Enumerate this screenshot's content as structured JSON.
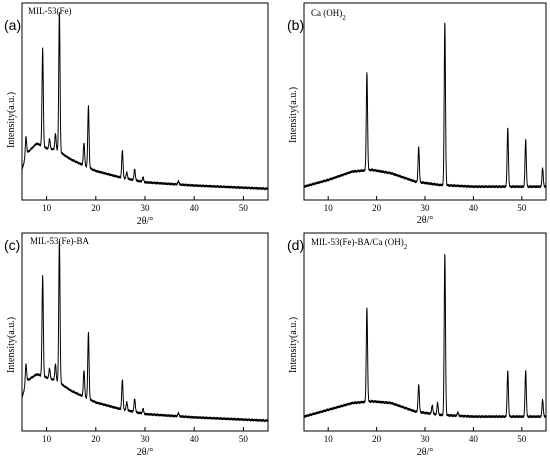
{
  "chart_data": [
    {
      "type": "line",
      "panel_label": "(a)",
      "title": "MIL-53(Fe)",
      "xlabel": "2θ/°",
      "ylabel": "Intensity(a.u.)",
      "xlim": [
        5,
        55
      ],
      "xticks": [
        10,
        20,
        30,
        40,
        50
      ],
      "y_scale": "arbitrary units, normalized 0-1",
      "grid": false,
      "series": [
        {
          "baseline": [
            [
              5,
              0.14
            ],
            [
              6,
              0.24
            ],
            [
              8,
              0.3
            ],
            [
              10,
              0.27
            ],
            [
              12,
              0.26
            ],
            [
              15,
              0.2
            ],
            [
              20,
              0.13
            ],
            [
              25,
              0.09
            ],
            [
              30,
              0.06
            ],
            [
              40,
              0.04
            ],
            [
              55,
              0.02
            ]
          ],
          "peaks": [
            [
              5.8,
              0.12
            ],
            [
              9.2,
              0.6
            ],
            [
              10.6,
              0.06
            ],
            [
              11.8,
              0.1
            ],
            [
              12.6,
              0.86
            ],
            [
              17.6,
              0.14
            ],
            [
              18.5,
              0.38
            ],
            [
              25.4,
              0.17
            ],
            [
              26.3,
              0.04
            ],
            [
              27.9,
              0.07
            ],
            [
              29.6,
              0.03
            ],
            [
              36.8,
              0.02
            ]
          ]
        }
      ]
    },
    {
      "type": "line",
      "panel_label": "(b)",
      "title": "Ca (OH)",
      "title_sub": "2",
      "xlabel": "2θ/°",
      "ylabel": "Intensity(a.u.)",
      "xlim": [
        5,
        55
      ],
      "xticks": [
        10,
        20,
        30,
        40,
        50
      ],
      "y_scale": "arbitrary units, normalized 0-1",
      "grid": false,
      "series": [
        {
          "baseline": [
            [
              5,
              0.02
            ],
            [
              10,
              0.06
            ],
            [
              15,
              0.11
            ],
            [
              19,
              0.12
            ],
            [
              23,
              0.1
            ],
            [
              28,
              0.05
            ],
            [
              33,
              0.03
            ],
            [
              40,
              0.02
            ],
            [
              55,
              0.02
            ]
          ],
          "peaks": [
            [
              18.0,
              0.58
            ],
            [
              28.7,
              0.21
            ],
            [
              34.1,
              0.97
            ],
            [
              47.1,
              0.35
            ],
            [
              50.8,
              0.28
            ],
            [
              54.3,
              0.11
            ]
          ]
        }
      ]
    },
    {
      "type": "line",
      "panel_label": "(c)",
      "title": "MIL-53(Fe)-BA",
      "xlabel": "2θ/°",
      "ylabel": "Intensity(a.u.)",
      "xlim": [
        5,
        55
      ],
      "xticks": [
        10,
        20,
        30,
        40,
        50
      ],
      "y_scale": "arbitrary units, normalized 0-1",
      "grid": false,
      "series": [
        {
          "baseline": [
            [
              5,
              0.16
            ],
            [
              6,
              0.26
            ],
            [
              8,
              0.3
            ],
            [
              10,
              0.28
            ],
            [
              12,
              0.26
            ],
            [
              15,
              0.2
            ],
            [
              20,
              0.13
            ],
            [
              25,
              0.09
            ],
            [
              30,
              0.06
            ],
            [
              40,
              0.04
            ],
            [
              55,
              0.02
            ]
          ],
          "peaks": [
            [
              5.8,
              0.12
            ],
            [
              9.2,
              0.6
            ],
            [
              10.6,
              0.06
            ],
            [
              11.8,
              0.1
            ],
            [
              12.6,
              0.85
            ],
            [
              17.6,
              0.16
            ],
            [
              18.5,
              0.4
            ],
            [
              25.4,
              0.18
            ],
            [
              26.3,
              0.05
            ],
            [
              27.9,
              0.08
            ],
            [
              29.6,
              0.03
            ],
            [
              36.8,
              0.02
            ]
          ]
        }
      ]
    },
    {
      "type": "line",
      "panel_label": "(d)",
      "title": "MIL-53(Fe)-BA/Ca (OH)",
      "title_sub": "2",
      "xlabel": "2θ/°",
      "ylabel": "Intensity(a.u.)",
      "xlim": [
        5,
        55
      ],
      "xticks": [
        10,
        20,
        30,
        40,
        50
      ],
      "y_scale": "arbitrary units, normalized 0-1",
      "grid": false,
      "series": [
        {
          "baseline": [
            [
              5,
              0.02
            ],
            [
              10,
              0.06
            ],
            [
              15,
              0.1
            ],
            [
              19,
              0.11
            ],
            [
              23,
              0.1
            ],
            [
              28,
              0.05
            ],
            [
              33,
              0.03
            ],
            [
              40,
              0.02
            ],
            [
              55,
              0.02
            ]
          ],
          "peaks": [
            [
              18.0,
              0.55
            ],
            [
              28.7,
              0.16
            ],
            [
              31.5,
              0.05
            ],
            [
              32.6,
              0.07
            ],
            [
              34.1,
              0.95
            ],
            [
              36.8,
              0.02
            ],
            [
              47.1,
              0.27
            ],
            [
              50.8,
              0.27
            ],
            [
              54.3,
              0.1
            ]
          ]
        }
      ]
    }
  ]
}
